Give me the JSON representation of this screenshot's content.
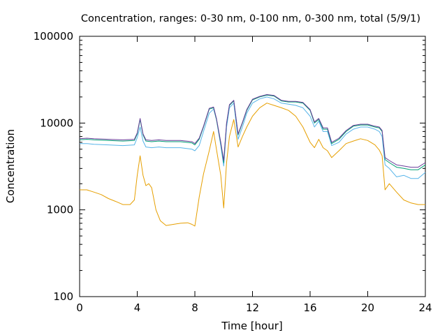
{
  "chart_data": {
    "type": "line",
    "title": "Concentration, ranges: 0-30 nm, 0-100 nm, 0-300 nm, total (5/9/1)",
    "xlabel": "Time [hour]",
    "ylabel": "Concentration",
    "xlim": [
      0,
      24
    ],
    "ylim": [
      100,
      100000
    ],
    "yscale": "log",
    "grid": false,
    "legend": "none",
    "xticks": [
      0,
      4,
      8,
      12,
      16,
      20,
      24
    ],
    "xtick_labels": [
      "0",
      "4",
      "8",
      "12",
      "16",
      "20",
      "24"
    ],
    "yticks": [
      100,
      1000,
      10000,
      100000
    ],
    "ytick_labels": [
      "100",
      "1000",
      "10000",
      "100000"
    ],
    "series": [
      {
        "name": "0-30 nm",
        "color": "#e69f00",
        "x": [
          0,
          0.5,
          1,
          1.5,
          2,
          2.5,
          3,
          3.5,
          3.8,
          4.0,
          4.2,
          4.4,
          4.6,
          4.8,
          5.0,
          5.3,
          5.6,
          6,
          6.5,
          7,
          7.5,
          7.8,
          8.0,
          8.3,
          8.6,
          9.0,
          9.3,
          9.5,
          9.8,
          10.0,
          10.2,
          10.4,
          10.7,
          11.0,
          11.3,
          11.6,
          12.0,
          12.5,
          13.0,
          13.5,
          14.0,
          14.5,
          15.0,
          15.5,
          16.0,
          16.3,
          16.6,
          16.9,
          17.2,
          17.5,
          18.0,
          18.5,
          19.0,
          19.5,
          20.0,
          20.5,
          20.8,
          21.0,
          21.2,
          21.5,
          22.0,
          22.5,
          23.0,
          23.5,
          24
        ],
        "values": [
          1700,
          1700,
          1600,
          1500,
          1350,
          1250,
          1150,
          1150,
          1300,
          2500,
          4200,
          2500,
          1900,
          2000,
          1800,
          1000,
          750,
          660,
          680,
          700,
          710,
          680,
          650,
          1400,
          2600,
          4800,
          8000,
          5000,
          2500,
          1050,
          3500,
          7000,
          11000,
          5300,
          7000,
          9000,
          12000,
          15000,
          17000,
          16000,
          15000,
          14000,
          12000,
          9000,
          6000,
          5200,
          6500,
          5200,
          4800,
          4000,
          4800,
          5800,
          6200,
          6600,
          6300,
          5600,
          4900,
          4200,
          1700,
          2000,
          1600,
          1300,
          1200,
          1150,
          1150
        ]
      },
      {
        "name": "0-100 nm",
        "color": "#56b4e9",
        "x": [
          0,
          0.5,
          1,
          2,
          3,
          3.8,
          4.0,
          4.2,
          4.4,
          4.6,
          5.0,
          5.5,
          6,
          7,
          7.8,
          8.0,
          8.3,
          8.6,
          9.0,
          9.3,
          9.5,
          9.8,
          10.0,
          10.2,
          10.4,
          10.7,
          11.0,
          11.3,
          11.6,
          12.0,
          12.5,
          13.0,
          13.5,
          14.0,
          14.5,
          15.0,
          15.5,
          16.0,
          16.3,
          16.6,
          16.9,
          17.2,
          17.5,
          18.0,
          18.5,
          19.0,
          19.5,
          20.0,
          20.5,
          20.8,
          21.0,
          21.2,
          21.5,
          22.0,
          22.5,
          23.0,
          23.5,
          24
        ],
        "values": [
          5800,
          5800,
          5700,
          5600,
          5500,
          5600,
          6800,
          9000,
          6200,
          5300,
          5200,
          5300,
          5200,
          5200,
          5000,
          4800,
          5500,
          8000,
          13000,
          14500,
          11000,
          5500,
          3200,
          9000,
          15000,
          17000,
          6500,
          9000,
          13000,
          17000,
          19000,
          20000,
          19000,
          17000,
          16500,
          16000,
          15000,
          12000,
          9000,
          10500,
          8000,
          8000,
          5500,
          6000,
          7500,
          8500,
          9000,
          9000,
          8500,
          8000,
          7000,
          3300,
          3000,
          2400,
          2500,
          2300,
          2300,
          2700
        ]
      },
      {
        "name": "0-300 nm",
        "color": "#009e73",
        "x": [
          0,
          0.5,
          1,
          2,
          3,
          3.8,
          4.0,
          4.2,
          4.4,
          4.6,
          5.0,
          5.5,
          6,
          7,
          7.8,
          8.0,
          8.3,
          8.6,
          9.0,
          9.3,
          9.5,
          9.8,
          10.0,
          10.2,
          10.4,
          10.7,
          11.0,
          11.3,
          11.6,
          12.0,
          12.5,
          13.0,
          13.5,
          14.0,
          14.5,
          15.0,
          15.5,
          16.0,
          16.3,
          16.6,
          16.9,
          17.2,
          17.5,
          18.0,
          18.5,
          19.0,
          19.5,
          20.0,
          20.5,
          20.8,
          21.0,
          21.2,
          21.5,
          22.0,
          22.5,
          23.0,
          23.5,
          24
        ],
        "values": [
          6400,
          6500,
          6400,
          6300,
          6200,
          6300,
          7500,
          11000,
          7300,
          6200,
          6100,
          6200,
          6100,
          6100,
          5900,
          5600,
          6500,
          9000,
          14500,
          15000,
          11000,
          5800,
          3500,
          9800,
          16000,
          18000,
          7300,
          10000,
          14000,
          18500,
          20000,
          21000,
          20500,
          18000,
          17500,
          17500,
          17000,
          14000,
          10000,
          11000,
          8500,
          8500,
          5800,
          6500,
          8000,
          9200,
          9500,
          9500,
          9000,
          8800,
          8000,
          3800,
          3500,
          3100,
          3000,
          2900,
          2900,
          3300
        ]
      },
      {
        "name": "total",
        "color": "#6a3d9a",
        "x": [
          0,
          0.5,
          1,
          2,
          3,
          3.8,
          4.0,
          4.2,
          4.4,
          4.6,
          5.0,
          5.5,
          6,
          7,
          7.8,
          8.0,
          8.3,
          8.6,
          9.0,
          9.3,
          9.5,
          9.8,
          10.0,
          10.2,
          10.4,
          10.7,
          11.0,
          11.3,
          11.6,
          12.0,
          12.5,
          13.0,
          13.5,
          14.0,
          14.5,
          15.0,
          15.5,
          16.0,
          16.3,
          16.6,
          16.9,
          17.2,
          17.5,
          18.0,
          18.5,
          19.0,
          19.5,
          20.0,
          20.5,
          20.8,
          21.0,
          21.2,
          21.5,
          22.0,
          22.5,
          23.0,
          23.5,
          24
        ],
        "values": [
          6600,
          6700,
          6600,
          6500,
          6400,
          6500,
          7700,
          11300,
          7500,
          6400,
          6300,
          6400,
          6300,
          6300,
          6100,
          5800,
          6700,
          9200,
          14800,
          15300,
          11300,
          6000,
          3700,
          10000,
          16300,
          18300,
          7500,
          10200,
          14300,
          18800,
          20300,
          21300,
          20800,
          18300,
          17800,
          17800,
          17300,
          14300,
          10300,
          11300,
          8800,
          8800,
          6000,
          6700,
          8200,
          9400,
          9700,
          9700,
          9200,
          9000,
          8200,
          4000,
          3700,
          3300,
          3200,
          3100,
          3100,
          3500
        ]
      }
    ]
  }
}
